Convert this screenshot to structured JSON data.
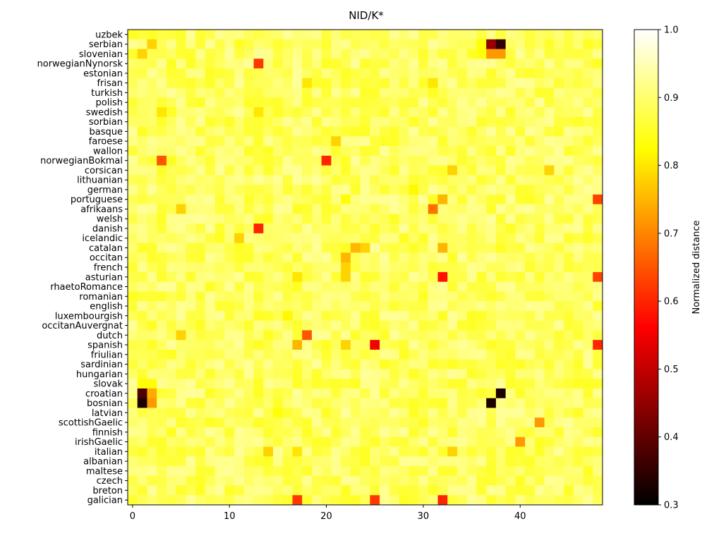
{
  "chart_data": {
    "type": "heatmap",
    "title": "NID/K*",
    "row_labels": [
      "uzbek",
      "serbian",
      "slovenian",
      "norwegianNynorsk",
      "estonian",
      "frisan",
      "turkish",
      "polish",
      "swedish",
      "sorbian",
      "basque",
      "faroese",
      "wallon",
      "norwegianBokmal",
      "corsican",
      "lithuanian",
      "german",
      "portuguese",
      "afrikaans",
      "welsh",
      "danish",
      "icelandic",
      "catalan",
      "occitan",
      "french",
      "asturian",
      "rhaetoRomance",
      "romanian",
      "english",
      "luxembourgish",
      "occitanAuvergnat",
      "dutch",
      "spanish",
      "friulian",
      "sardinian",
      "hungarian",
      "slovak",
      "croatian",
      "bosnian",
      "latvian",
      "scottishGaelic",
      "finnish",
      "irishGaelic",
      "italian",
      "albanian",
      "maltese",
      "czech",
      "breton",
      "galician"
    ],
    "x_ticks": [
      0,
      10,
      20,
      30,
      40
    ],
    "x_tick_labels": [
      "0",
      "10",
      "20",
      "30",
      "40"
    ],
    "n_columns": 49,
    "colorbar": {
      "label": "Normalized distance",
      "range": [
        0.3,
        1.0
      ],
      "ticks": [
        0.3,
        0.4,
        0.5,
        0.6,
        0.7,
        0.8,
        0.9,
        1.0
      ],
      "tick_labels": [
        "0.3",
        "0.4",
        "0.5",
        "0.6",
        "0.7",
        "0.8",
        "0.9",
        "1.0"
      ],
      "colormap": "hot"
    },
    "background_value": 0.89,
    "highlight_cells": [
      [
        1,
        37,
        0.45
      ],
      [
        1,
        38,
        0.35
      ],
      [
        2,
        37,
        0.72
      ],
      [
        2,
        38,
        0.72
      ],
      [
        1,
        2,
        0.78
      ],
      [
        2,
        1,
        0.78
      ],
      [
        3,
        13,
        0.62
      ],
      [
        13,
        3,
        0.65
      ],
      [
        5,
        18,
        0.8
      ],
      [
        5,
        31,
        0.8
      ],
      [
        8,
        3,
        0.8
      ],
      [
        8,
        13,
        0.8
      ],
      [
        11,
        21,
        0.78
      ],
      [
        13,
        20,
        0.6
      ],
      [
        20,
        13,
        0.6
      ],
      [
        14,
        33,
        0.78
      ],
      [
        14,
        43,
        0.78
      ],
      [
        17,
        22,
        0.83
      ],
      [
        17,
        32,
        0.75
      ],
      [
        17,
        48,
        0.63
      ],
      [
        18,
        5,
        0.78
      ],
      [
        18,
        31,
        0.68
      ],
      [
        21,
        11,
        0.78
      ],
      [
        22,
        23,
        0.75
      ],
      [
        22,
        24,
        0.78
      ],
      [
        22,
        32,
        0.75
      ],
      [
        23,
        22,
        0.75
      ],
      [
        24,
        22,
        0.78
      ],
      [
        25,
        32,
        0.58
      ],
      [
        25,
        48,
        0.63
      ],
      [
        25,
        22,
        0.78
      ],
      [
        25,
        17,
        0.8
      ],
      [
        31,
        18,
        0.65
      ],
      [
        31,
        5,
        0.78
      ],
      [
        32,
        25,
        0.55
      ],
      [
        32,
        17,
        0.75
      ],
      [
        32,
        48,
        0.6
      ],
      [
        32,
        22,
        0.78
      ],
      [
        37,
        1,
        0.38
      ],
      [
        37,
        2,
        0.74
      ],
      [
        38,
        1,
        0.33
      ],
      [
        38,
        2,
        0.72
      ],
      [
        37,
        38,
        0.33
      ],
      [
        38,
        37,
        0.33
      ],
      [
        39,
        15,
        0.83
      ],
      [
        40,
        42,
        0.72
      ],
      [
        41,
        4,
        0.85
      ],
      [
        42,
        40,
        0.72
      ],
      [
        43,
        14,
        0.78
      ],
      [
        43,
        33,
        0.78
      ],
      [
        43,
        17,
        0.8
      ],
      [
        48,
        17,
        0.62
      ],
      [
        48,
        25,
        0.62
      ],
      [
        48,
        32,
        0.6
      ],
      [
        29,
        16,
        0.82
      ],
      [
        16,
        29,
        0.82
      ],
      [
        36,
        1,
        0.83
      ],
      [
        36,
        2,
        0.83
      ],
      [
        2,
        36,
        0.83
      ],
      [
        1,
        36,
        0.83
      ]
    ]
  }
}
